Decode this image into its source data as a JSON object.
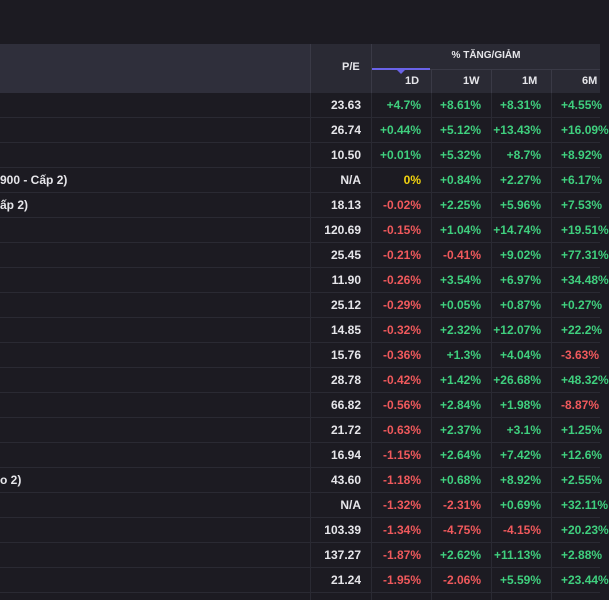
{
  "header": {
    "pe_label": "P/E",
    "group_label": "% TĂNG/GIẢM",
    "cols": [
      "1D",
      "1W",
      "1M",
      "6M"
    ]
  },
  "colors": {
    "up": "#3fcf7e",
    "down": "#f0595c",
    "flat": "#f3d40f",
    "text": "#e6e6ea"
  },
  "rows": [
    {
      "name": "",
      "pe": "23.63",
      "d1": "+4.7%",
      "w1": "+8.61%",
      "m1": "+8.31%",
      "m6": "+4.55%"
    },
    {
      "name": "",
      "pe": "26.74",
      "d1": "+0.44%",
      "w1": "+5.12%",
      "m1": "+13.43%",
      "m6": "+16.09%"
    },
    {
      "name": "",
      "pe": "10.50",
      "d1": "+0.01%",
      "w1": "+5.32%",
      "m1": "+8.7%",
      "m6": "+8.92%"
    },
    {
      "name": "900 - Cấp 2)",
      "pe": "N/A",
      "d1": "0%",
      "w1": "+0.84%",
      "m1": "+2.27%",
      "m6": "+6.17%"
    },
    {
      "name": "ấp 2)",
      "pe": "18.13",
      "d1": "-0.02%",
      "w1": "+2.25%",
      "m1": "+5.96%",
      "m6": "+7.53%"
    },
    {
      "name": "",
      "pe": "120.69",
      "d1": "-0.15%",
      "w1": "+1.04%",
      "m1": "+14.74%",
      "m6": "+19.51%"
    },
    {
      "name": "",
      "pe": "25.45",
      "d1": "-0.21%",
      "w1": "-0.41%",
      "m1": "+9.02%",
      "m6": "+77.31%"
    },
    {
      "name": "",
      "pe": "11.90",
      "d1": "-0.26%",
      "w1": "+3.54%",
      "m1": "+6.97%",
      "m6": "+34.48%"
    },
    {
      "name": "",
      "pe": "25.12",
      "d1": "-0.29%",
      "w1": "+0.05%",
      "m1": "+0.87%",
      "m6": "+0.27%"
    },
    {
      "name": "",
      "pe": "14.85",
      "d1": "-0.32%",
      "w1": "+2.32%",
      "m1": "+12.07%",
      "m6": "+22.2%"
    },
    {
      "name": "",
      "pe": "15.76",
      "d1": "-0.36%",
      "w1": "+1.3%",
      "m1": "+4.04%",
      "m6": "-3.63%"
    },
    {
      "name": "",
      "pe": "28.78",
      "d1": "-0.42%",
      "w1": "+1.42%",
      "m1": "+26.68%",
      "m6": "+48.32%"
    },
    {
      "name": "",
      "pe": "66.82",
      "d1": "-0.56%",
      "w1": "+2.84%",
      "m1": "+1.98%",
      "m6": "-8.87%"
    },
    {
      "name": "",
      "pe": "21.72",
      "d1": "-0.63%",
      "w1": "+2.37%",
      "m1": "+3.1%",
      "m6": "+1.25%"
    },
    {
      "name": "",
      "pe": "16.94",
      "d1": "-1.15%",
      "w1": "+2.64%",
      "m1": "+7.42%",
      "m6": "+12.6%"
    },
    {
      "name": "o 2)",
      "pe": "43.60",
      "d1": "-1.18%",
      "w1": "+0.68%",
      "m1": "+8.92%",
      "m6": "+2.55%"
    },
    {
      "name": "",
      "pe": "N/A",
      "d1": "-1.32%",
      "w1": "-2.31%",
      "m1": "+0.69%",
      "m6": "+32.11%"
    },
    {
      "name": "",
      "pe": "103.39",
      "d1": "-1.34%",
      "w1": "-4.75%",
      "m1": "-4.15%",
      "m6": "+20.23%"
    },
    {
      "name": "",
      "pe": "137.27",
      "d1": "-1.87%",
      "w1": "+2.62%",
      "m1": "+11.13%",
      "m6": "+2.88%"
    },
    {
      "name": "",
      "pe": "21.24",
      "d1": "-1.95%",
      "w1": "-2.06%",
      "m1": "+5.59%",
      "m6": "+23.44%"
    }
  ]
}
